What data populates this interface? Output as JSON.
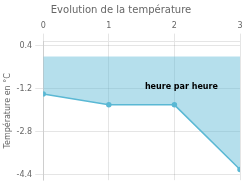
{
  "chart_data": {
    "type": "area",
    "title": "Evolution de la température",
    "ylabel": "Température en °C",
    "x": [
      0,
      1,
      2,
      3
    ],
    "values": [
      -1.4,
      -1.8,
      -1.8,
      -4.2
    ],
    "color": "#5ab8d4",
    "xlim": [
      0,
      3
    ],
    "ylim": [
      -4.6,
      0.55
    ],
    "xticks": [
      0,
      1,
      2,
      3
    ],
    "yticks": [
      0.4,
      -1.2,
      -2.8,
      -4.4
    ],
    "grid": true,
    "annotations": [
      {
        "text": "heure par heure",
        "x": 1.55,
        "y": -1.3
      }
    ]
  }
}
